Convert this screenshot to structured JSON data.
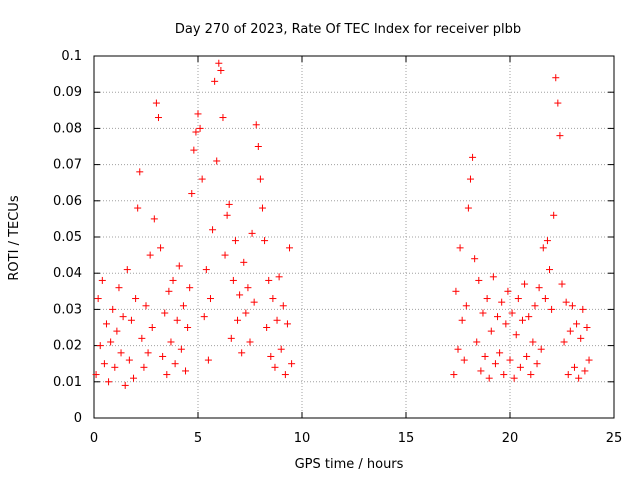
{
  "chart_data": {
    "type": "scatter",
    "title": "Day 270 of 2023, Rate Of TEC Index for receiver plbb",
    "xlabel": "GPS time / hours",
    "ylabel": "ROTI / TECUs",
    "xlim": [
      0,
      25
    ],
    "ylim": [
      0,
      0.1
    ],
    "x_ticks": [
      0,
      5,
      10,
      15,
      20,
      25
    ],
    "x_tick_labels": [
      "0",
      "5",
      "10",
      "15",
      "20",
      "25"
    ],
    "y_ticks": [
      0,
      0.01,
      0.02,
      0.03,
      0.04,
      0.05,
      0.06,
      0.07,
      0.08,
      0.09,
      0.1
    ],
    "y_tick_labels": [
      "0",
      "0.01",
      "0.02",
      "0.03",
      "0.04",
      "0.05",
      "0.06",
      "0.07",
      "0.08",
      "0.09",
      "0.1"
    ],
    "grid": true,
    "marker": "+",
    "color": "#ff0000",
    "series": [
      {
        "points": [
          [
            0.1,
            0.012
          ],
          [
            0.2,
            0.033
          ],
          [
            0.3,
            0.02
          ],
          [
            0.4,
            0.038
          ],
          [
            0.5,
            0.015
          ],
          [
            0.6,
            0.026
          ],
          [
            0.7,
            0.01
          ],
          [
            0.8,
            0.021
          ],
          [
            0.9,
            0.03
          ],
          [
            1.0,
            0.014
          ],
          [
            1.1,
            0.024
          ],
          [
            1.2,
            0.036
          ],
          [
            1.3,
            0.018
          ],
          [
            1.4,
            0.028
          ],
          [
            1.5,
            0.009
          ],
          [
            1.6,
            0.041
          ],
          [
            1.7,
            0.016
          ],
          [
            1.8,
            0.027
          ],
          [
            1.9,
            0.011
          ],
          [
            2.0,
            0.033
          ],
          [
            2.1,
            0.058
          ],
          [
            2.2,
            0.068
          ],
          [
            2.3,
            0.022
          ],
          [
            2.4,
            0.014
          ],
          [
            2.5,
            0.031
          ],
          [
            2.6,
            0.018
          ],
          [
            2.7,
            0.045
          ],
          [
            2.8,
            0.025
          ],
          [
            2.9,
            0.055
          ],
          [
            3.0,
            0.087
          ],
          [
            3.1,
            0.083
          ],
          [
            3.2,
            0.047
          ],
          [
            3.3,
            0.017
          ],
          [
            3.4,
            0.029
          ],
          [
            3.5,
            0.012
          ],
          [
            3.6,
            0.035
          ],
          [
            3.7,
            0.021
          ],
          [
            3.8,
            0.038
          ],
          [
            3.9,
            0.015
          ],
          [
            4.0,
            0.027
          ],
          [
            4.1,
            0.042
          ],
          [
            4.2,
            0.019
          ],
          [
            4.3,
            0.031
          ],
          [
            4.4,
            0.013
          ],
          [
            4.5,
            0.025
          ],
          [
            4.6,
            0.036
          ],
          [
            4.7,
            0.062
          ],
          [
            4.8,
            0.074
          ],
          [
            4.9,
            0.079
          ],
          [
            5.0,
            0.084
          ],
          [
            5.1,
            0.08
          ],
          [
            5.2,
            0.066
          ],
          [
            5.3,
            0.028
          ],
          [
            5.4,
            0.041
          ],
          [
            5.5,
            0.016
          ],
          [
            5.6,
            0.033
          ],
          [
            5.7,
            0.052
          ],
          [
            5.8,
            0.093
          ],
          [
            5.9,
            0.071
          ],
          [
            6.0,
            0.098
          ],
          [
            6.1,
            0.096
          ],
          [
            6.2,
            0.083
          ],
          [
            6.3,
            0.045
          ],
          [
            6.4,
            0.056
          ],
          [
            6.5,
            0.059
          ],
          [
            6.6,
            0.022
          ],
          [
            6.7,
            0.038
          ],
          [
            6.8,
            0.049
          ],
          [
            6.9,
            0.027
          ],
          [
            7.0,
            0.034
          ],
          [
            7.1,
            0.018
          ],
          [
            7.2,
            0.043
          ],
          [
            7.3,
            0.029
          ],
          [
            7.4,
            0.036
          ],
          [
            7.5,
            0.021
          ],
          [
            7.6,
            0.051
          ],
          [
            7.7,
            0.032
          ],
          [
            7.8,
            0.081
          ],
          [
            7.9,
            0.075
          ],
          [
            8.0,
            0.066
          ],
          [
            8.1,
            0.058
          ],
          [
            8.2,
            0.049
          ],
          [
            8.3,
            0.025
          ],
          [
            8.4,
            0.038
          ],
          [
            8.5,
            0.017
          ],
          [
            8.6,
            0.033
          ],
          [
            8.7,
            0.014
          ],
          [
            8.8,
            0.027
          ],
          [
            8.9,
            0.039
          ],
          [
            9.0,
            0.019
          ],
          [
            9.1,
            0.031
          ],
          [
            9.2,
            0.012
          ],
          [
            9.3,
            0.026
          ],
          [
            9.4,
            0.047
          ],
          [
            9.5,
            0.015
          ],
          [
            17.3,
            0.012
          ],
          [
            17.4,
            0.035
          ],
          [
            17.5,
            0.019
          ],
          [
            17.6,
            0.047
          ],
          [
            17.7,
            0.027
          ],
          [
            17.8,
            0.016
          ],
          [
            17.9,
            0.031
          ],
          [
            18.0,
            0.058
          ],
          [
            18.1,
            0.066
          ],
          [
            18.2,
            0.072
          ],
          [
            18.3,
            0.044
          ],
          [
            18.4,
            0.021
          ],
          [
            18.5,
            0.038
          ],
          [
            18.6,
            0.013
          ],
          [
            18.7,
            0.029
          ],
          [
            18.8,
            0.017
          ],
          [
            18.9,
            0.033
          ],
          [
            19.0,
            0.011
          ],
          [
            19.1,
            0.024
          ],
          [
            19.2,
            0.039
          ],
          [
            19.3,
            0.015
          ],
          [
            19.4,
            0.028
          ],
          [
            19.5,
            0.018
          ],
          [
            19.6,
            0.032
          ],
          [
            19.7,
            0.012
          ],
          [
            19.8,
            0.026
          ],
          [
            19.9,
            0.035
          ],
          [
            20.0,
            0.016
          ],
          [
            20.1,
            0.029
          ],
          [
            20.2,
            0.011
          ],
          [
            20.3,
            0.023
          ],
          [
            20.4,
            0.033
          ],
          [
            20.5,
            0.014
          ],
          [
            20.6,
            0.027
          ],
          [
            20.7,
            0.037
          ],
          [
            20.8,
            0.017
          ],
          [
            20.9,
            0.028
          ],
          [
            21.0,
            0.012
          ],
          [
            21.1,
            0.021
          ],
          [
            21.2,
            0.031
          ],
          [
            21.3,
            0.015
          ],
          [
            21.4,
            0.036
          ],
          [
            21.5,
            0.019
          ],
          [
            21.6,
            0.047
          ],
          [
            21.7,
            0.033
          ],
          [
            21.8,
            0.049
          ],
          [
            21.9,
            0.041
          ],
          [
            22.0,
            0.03
          ],
          [
            22.1,
            0.056
          ],
          [
            22.2,
            0.094
          ],
          [
            22.3,
            0.087
          ],
          [
            22.4,
            0.078
          ],
          [
            22.5,
            0.037
          ],
          [
            22.6,
            0.021
          ],
          [
            22.7,
            0.032
          ],
          [
            22.8,
            0.012
          ],
          [
            22.9,
            0.024
          ],
          [
            23.0,
            0.031
          ],
          [
            23.1,
            0.014
          ],
          [
            23.2,
            0.026
          ],
          [
            23.3,
            0.011
          ],
          [
            23.4,
            0.022
          ],
          [
            23.5,
            0.03
          ],
          [
            23.6,
            0.013
          ],
          [
            23.7,
            0.025
          ],
          [
            23.8,
            0.016
          ]
        ]
      }
    ]
  }
}
